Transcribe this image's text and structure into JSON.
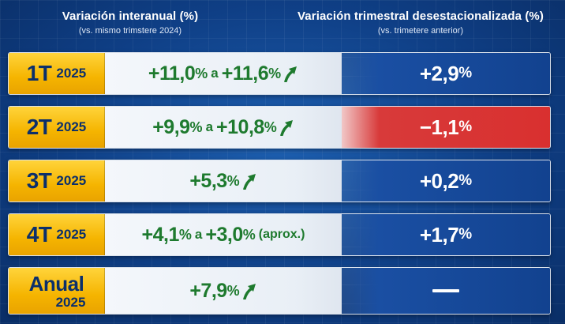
{
  "header": {
    "left_title": "Variación interanual (%)",
    "left_subtitle": "(vs. mismo trimstere 2024)",
    "right_title": "Variación trimestral desestacionalizada (%)",
    "right_subtitle": "(vs. trimetere anterior)"
  },
  "rows": [
    {
      "quarter": "1T",
      "year": "2025",
      "yoy": {
        "from": "+11,0",
        "from_pct": "%",
        "sep": "a",
        "to": "+11,6",
        "to_pct": "%",
        "note": "",
        "trend": "up"
      },
      "qoq": {
        "value": "+2,9",
        "pct": "%",
        "status": "positive"
      }
    },
    {
      "quarter": "2T",
      "year": "2025",
      "yoy": {
        "from": "+9,9",
        "from_pct": "%",
        "sep": "a",
        "to": "+10,8",
        "to_pct": "%",
        "note": "",
        "trend": "up"
      },
      "qoq": {
        "value": "−1,1",
        "pct": "%",
        "status": "negative"
      }
    },
    {
      "quarter": "3T",
      "year": "2025",
      "yoy": {
        "from": "+5,3",
        "from_pct": "%",
        "trend": "up"
      },
      "qoq": {
        "value": "+0,2",
        "pct": "%",
        "status": "positive"
      }
    },
    {
      "quarter": "4T",
      "year": "2025",
      "yoy": {
        "from": "+4,1",
        "from_pct": "%",
        "sep": "a",
        "to": "+3,0",
        "to_pct": "%",
        "note": "(aprox.)",
        "trend": "none"
      },
      "qoq": {
        "value": "+1,7",
        "pct": "%",
        "status": "positive"
      }
    },
    {
      "quarter": "Anual",
      "year": "2025",
      "yoy": {
        "from": "+7,9",
        "from_pct": "%",
        "trend": "up"
      },
      "qoq": {
        "value": "",
        "pct": "",
        "status": "none",
        "dash": true
      }
    }
  ],
  "colors": {
    "background": "#0f3f86",
    "label_gold": "#f5b400",
    "label_text": "#0b2f6b",
    "positive_green": "#1e7a2e",
    "negative_red": "#d9302f",
    "qoq_blue": "#12428f"
  },
  "icons": {
    "trend_up": "arrow-up-icon"
  }
}
